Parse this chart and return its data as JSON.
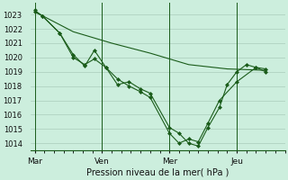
{
  "xlabel": "Pression niveau de la mer( hPa )",
  "bg_color": "#cceedd",
  "grid_color": "#aaccbb",
  "line_color": "#1a5c1a",
  "marker_color": "#1a5c1a",
  "ylim": [
    1013.5,
    1023.8
  ],
  "yticks": [
    1014,
    1015,
    1016,
    1017,
    1018,
    1019,
    1020,
    1021,
    1022,
    1023
  ],
  "xtick_labels": [
    "Mar",
    "Ven",
    "Mer",
    "Jeu"
  ],
  "xtick_positions": [
    0,
    3.5,
    7.0,
    10.5
  ],
  "xlim": [
    -0.2,
    13.0
  ],
  "series1_x": [
    0,
    0.4,
    1.3,
    2.0,
    2.6,
    3.1,
    3.7,
    4.3,
    4.9,
    5.5,
    6.0,
    7.0,
    7.5,
    8.0,
    8.5,
    9.0,
    9.6,
    10.0,
    10.5,
    11.0,
    11.5,
    12.0
  ],
  "series1_y": [
    1023.2,
    1022.9,
    1021.7,
    1020.0,
    1019.5,
    1019.9,
    1019.3,
    1018.1,
    1018.3,
    1017.8,
    1017.5,
    1015.1,
    1014.7,
    1014.0,
    1013.8,
    1015.1,
    1016.5,
    1018.1,
    1019.0,
    1019.5,
    1019.3,
    1019.2
  ],
  "series2_x": [
    0,
    0.4,
    1.3,
    2.0,
    2.6,
    3.1,
    3.7,
    4.3,
    4.9,
    5.5,
    6.0,
    7.0,
    7.5,
    8.0,
    8.5,
    9.0,
    9.6,
    10.5,
    11.5,
    12.0
  ],
  "series2_y": [
    1023.3,
    1022.9,
    1021.7,
    1020.2,
    1019.4,
    1020.5,
    1019.3,
    1018.5,
    1018.0,
    1017.6,
    1017.2,
    1014.7,
    1014.0,
    1014.3,
    1014.1,
    1015.4,
    1017.0,
    1018.3,
    1019.3,
    1019.0
  ],
  "series3_x": [
    0,
    2.0,
    4.0,
    6.0,
    8.0,
    10.0,
    12.0
  ],
  "series3_y": [
    1023.2,
    1021.8,
    1021.0,
    1020.3,
    1019.5,
    1019.2,
    1019.1
  ]
}
